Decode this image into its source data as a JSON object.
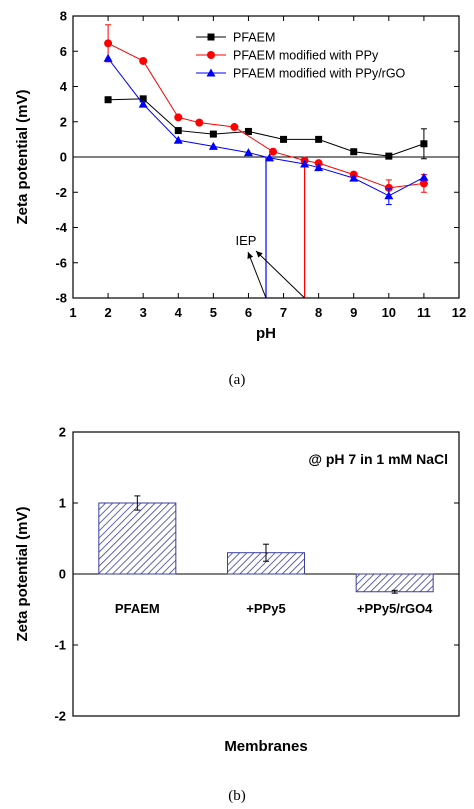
{
  "chart_data": [
    {
      "type": "line",
      "panel_label": "(a)",
      "xlabel": "pH",
      "ylabel": "Zeta potential (mV)",
      "xlim": [
        1,
        12
      ],
      "ylim": [
        -8,
        8
      ],
      "x_ticks": [
        1,
        2,
        3,
        4,
        5,
        6,
        7,
        8,
        9,
        10,
        11,
        12
      ],
      "y_ticks": [
        8,
        6,
        4,
        2,
        0,
        -2,
        -4,
        -6,
        -8
      ],
      "zero_line": true,
      "legend_position": "top-right",
      "series": [
        {
          "name": "PFAEM",
          "color": "#000000",
          "marker": "square",
          "points": [
            [
              2,
              3.25
            ],
            [
              3,
              3.3
            ],
            [
              4,
              1.5
            ],
            [
              5,
              1.3
            ],
            [
              6,
              1.45
            ],
            [
              7,
              1.0
            ],
            [
              8,
              1.0
            ],
            [
              9,
              0.3
            ],
            [
              10,
              0.05
            ],
            [
              11,
              0.75
            ]
          ],
          "error_bars": [
            {
              "x": 11,
              "low": -0.1,
              "high": 1.6
            }
          ]
        },
        {
          "name": "PFAEM modified with PPy",
          "color": "#ff0000",
          "marker": "circle",
          "points": [
            [
              2,
              6.45
            ],
            [
              3,
              5.45
            ],
            [
              4,
              2.25
            ],
            [
              4.6,
              1.95
            ],
            [
              5.6,
              1.7
            ],
            [
              6.7,
              0.3
            ],
            [
              7.6,
              -0.2
            ],
            [
              8,
              -0.35
            ],
            [
              9,
              -1.0
            ],
            [
              10,
              -1.75
            ],
            [
              11,
              -1.5
            ]
          ],
          "error_bars": [
            {
              "x": 2,
              "low": 5.4,
              "high": 7.5
            },
            {
              "x": 10,
              "low": -2.3,
              "high": -1.3
            },
            {
              "x": 11,
              "low": -2.0,
              "high": -1.0
            }
          ]
        },
        {
          "name": "PFAEM modified with PPy/rGO",
          "color": "#0000ff",
          "marker": "triangle",
          "points": [
            [
              2,
              5.6
            ],
            [
              3,
              3.0
            ],
            [
              4,
              0.95
            ],
            [
              5,
              0.6
            ],
            [
              6,
              0.25
            ],
            [
              6.6,
              -0.05
            ],
            [
              7.6,
              -0.4
            ],
            [
              8,
              -0.6
            ],
            [
              9,
              -1.2
            ],
            [
              10,
              -2.2
            ],
            [
              11,
              -1.15
            ]
          ],
          "error_bars": [
            {
              "x": 10,
              "low": -2.7,
              "high": -1.8
            }
          ]
        }
      ],
      "iep_annotation": {
        "label": "IEP",
        "lines": [
          {
            "x": 6.5,
            "color": "#0000ff"
          },
          {
            "x": 7.6,
            "color": "#ff0000"
          }
        ]
      }
    },
    {
      "type": "bar",
      "panel_label": "(b)",
      "xlabel": "Membranes",
      "ylabel": "Zeta potential (mV)",
      "ylim": [
        -2,
        2
      ],
      "y_ticks": [
        2,
        1,
        0,
        -1,
        -2
      ],
      "annotation": "@ pH 7 in 1 mM NaCl",
      "categories": [
        "PFAEM",
        "+PPy5",
        "+PPy5/rGO4"
      ],
      "values": [
        1.0,
        0.3,
        -0.25
      ],
      "errors": [
        0.1,
        0.12,
        0.02
      ],
      "bar_fill": "hatched",
      "bar_color": "#3a3f9a"
    }
  ]
}
